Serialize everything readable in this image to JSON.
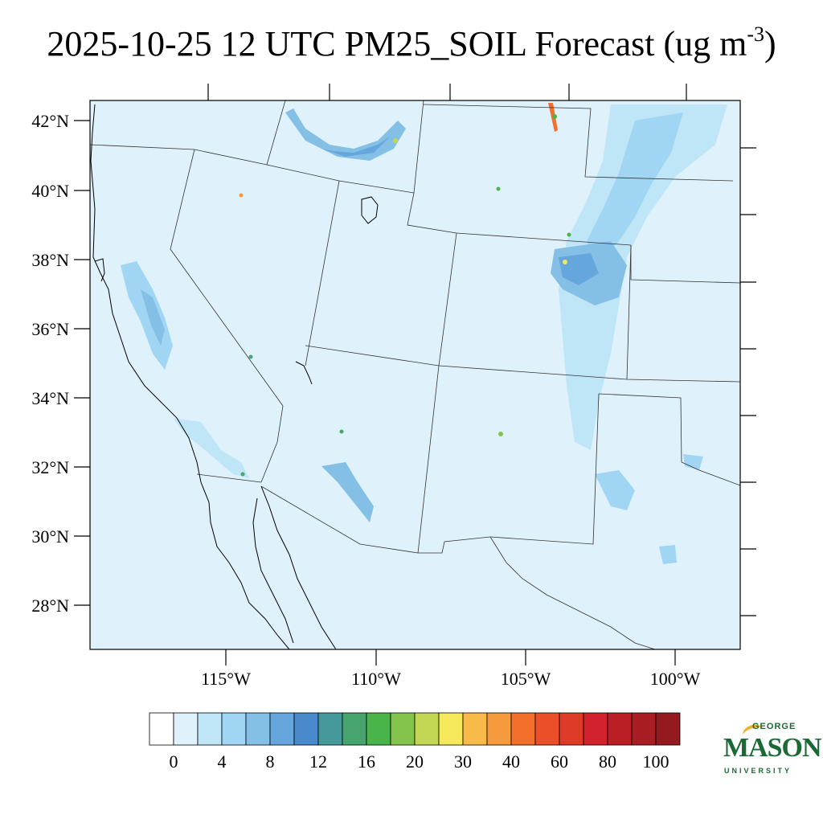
{
  "title": {
    "main": "2025-10-25 12 UTC PM25_SOIL Forecast (ug m",
    "sup": "-3",
    "close": ")"
  },
  "map": {
    "lat_labels": [
      "42°N",
      "40°N",
      "38°N",
      "36°N",
      "34°N",
      "32°N",
      "30°N",
      "28°N"
    ],
    "lon_labels": [
      "115°W",
      "110°W",
      "105°W",
      "100°W"
    ],
    "background_color": "#dff1fb",
    "boundary_color": "#333333"
  },
  "colorbar": {
    "labels": [
      "0",
      "4",
      "8",
      "12",
      "16",
      "20",
      "30",
      "40",
      "60",
      "80",
      "100"
    ],
    "colors": [
      "#ffffff",
      "#dff1fb",
      "#bfe6f7",
      "#a0d6f3",
      "#84bfe6",
      "#65a6dc",
      "#4a89cb",
      "#46999a",
      "#48a46f",
      "#49b449",
      "#84c44c",
      "#c3d755",
      "#f6e85b",
      "#f8bb4a",
      "#f59a3d",
      "#f26f2c",
      "#eb4f2a",
      "#de3a28",
      "#d1222d",
      "#bb1f26",
      "#a81d23",
      "#931a1e"
    ]
  },
  "logo": {
    "line1": "GEORGE",
    "line2": "MASON",
    "line3": "UNIVERSITY"
  }
}
